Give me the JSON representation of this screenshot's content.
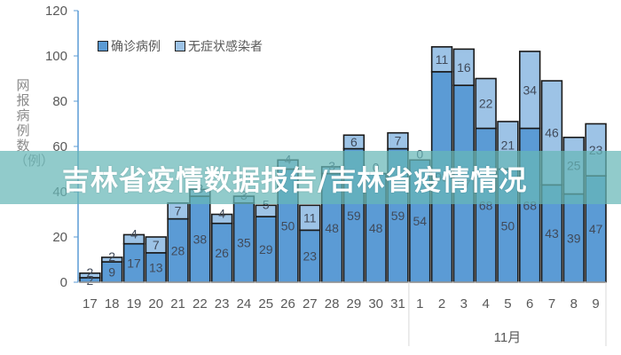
{
  "banner": {
    "title": "吉林省疫情数据报告/吉林省疫情情况"
  },
  "legend": {
    "confirmed": "确诊病例",
    "asymptomatic": "无症状感染者"
  },
  "y_axis_label": "网报病例数（例）",
  "month_label": "11月",
  "colors": {
    "confirmed": "#5b9bd5",
    "asymptomatic": "#9dc3e6",
    "banner": "#66b7b7",
    "axis": "#5b9bd5"
  },
  "chart_data": {
    "type": "bar",
    "stacked": true,
    "title": "吉林省疫情数据报告/吉林省疫情情况",
    "xlabel": "",
    "ylabel": "网报病例数（例）",
    "ylim": [
      0,
      120
    ],
    "yticks": [
      0,
      20,
      40,
      60,
      80,
      100,
      120
    ],
    "categories": [
      "17",
      "18",
      "19",
      "20",
      "21",
      "22",
      "23",
      "24",
      "25",
      "26",
      "27",
      "28",
      "29",
      "30",
      "31",
      "1",
      "2",
      "3",
      "4",
      "5",
      "6",
      "7",
      "8",
      "9"
    ],
    "category_groups": [
      {
        "label": "",
        "from": "17",
        "to": "31"
      },
      {
        "label": "11月",
        "from": "1",
        "to": "9"
      }
    ],
    "series": [
      {
        "name": "确诊病例",
        "values": [
          2,
          9,
          17,
          13,
          28,
          38,
          26,
          35,
          29,
          50,
          23,
          48,
          59,
          48,
          59,
          54,
          93,
          87,
          68,
          50,
          68,
          43,
          39,
          47
        ]
      },
      {
        "name": "无症状感染者",
        "values": [
          2,
          2,
          4,
          7,
          7,
          3,
          4,
          3,
          5,
          4,
          11,
          3,
          6,
          0,
          7,
          0,
          11,
          16,
          22,
          21,
          34,
          46,
          25,
          23
        ]
      }
    ],
    "legend_position": "top-left",
    "grid": false
  }
}
